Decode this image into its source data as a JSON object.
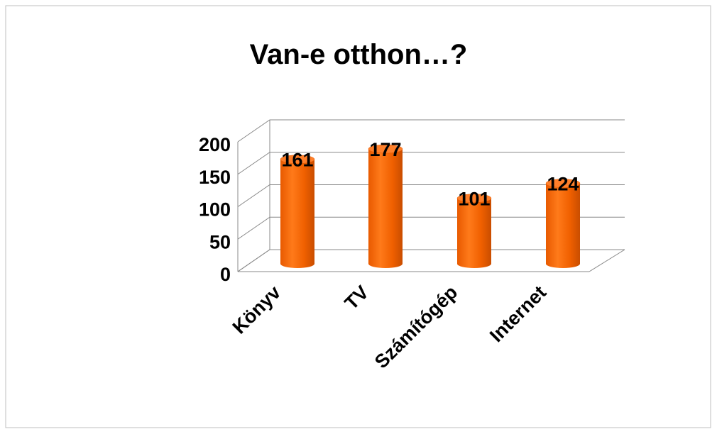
{
  "chart_data": {
    "type": "bar",
    "title": "Van-e otthon…?",
    "categories": [
      "Könyv",
      "TV",
      "Számítógép",
      "Internet"
    ],
    "values": [
      161,
      177,
      101,
      124
    ],
    "color": "#ff6600",
    "ylim": [
      0,
      200
    ],
    "yticks": [
      0,
      50,
      100,
      150,
      200
    ],
    "grid": true
  }
}
